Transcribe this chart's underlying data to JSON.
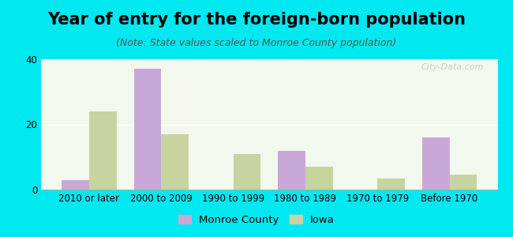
{
  "title": "Year of entry for the foreign-born population",
  "subtitle": "(Note: State values scaled to Monroe County population)",
  "categories": [
    "2010 or later",
    "2000 to 2009",
    "1990 to 1999",
    "1980 to 1989",
    "1970 to 1979",
    "Before 1970"
  ],
  "monroe_county": [
    3,
    37,
    0,
    12,
    0,
    16
  ],
  "iowa": [
    24,
    17,
    11,
    7,
    3.5,
    4.5
  ],
  "monroe_color": "#c9a8d8",
  "iowa_color": "#c8d4a0",
  "background_outer": "#00e8f0",
  "background_inner": "#f2f8ee",
  "ylim": [
    0,
    40
  ],
  "yticks": [
    0,
    20,
    40
  ],
  "bar_width": 0.38,
  "legend_monroe": "Monroe County",
  "legend_iowa": "Iowa",
  "title_fontsize": 15,
  "subtitle_fontsize": 9,
  "axis_label_fontsize": 8.5
}
